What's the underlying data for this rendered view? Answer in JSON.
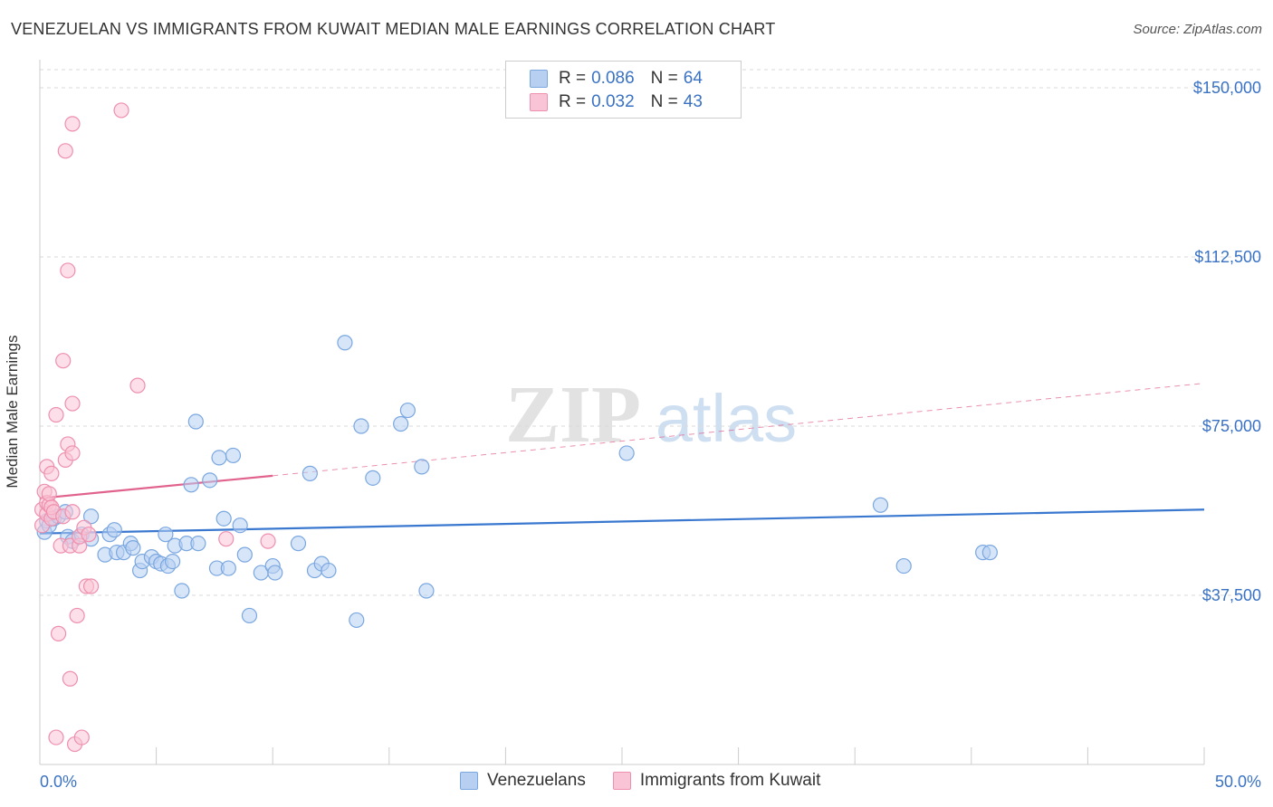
{
  "title": "VENEZUELAN VS IMMIGRANTS FROM KUWAIT MEDIAN MALE EARNINGS CORRELATION CHART",
  "source": "Source: ZipAtlas.com",
  "watermark": {
    "zip": "ZIP",
    "atlas": "atlas"
  },
  "legend": {
    "r_label": "R =",
    "n_label": "N =",
    "series": [
      {
        "name": "Venezuelans",
        "r": "0.086",
        "n": "64",
        "fill": "#b7d0f2",
        "stroke": "#7aa7e0"
      },
      {
        "name": "Immigrants from Kuwait",
        "r": "0.032",
        "n": "43",
        "fill": "#f9c5d6",
        "stroke": "#ee8fae"
      }
    ]
  },
  "chart_data": {
    "type": "scatter",
    "title": "VENEZUELAN VS IMMIGRANTS FROM KUWAIT MEDIAN MALE EARNINGS CORRELATION CHART",
    "xlabel": "",
    "ylabel": "Median Male Earnings",
    "xlim": [
      0,
      50
    ],
    "ylim": [
      0,
      155000
    ],
    "x_tick_labels": [
      "0.0%",
      "50.0%"
    ],
    "y_ticks": [
      37500,
      75000,
      112500,
      150000
    ],
    "y_tick_labels": [
      "$37,500",
      "$75,000",
      "$112,500",
      "$150,000"
    ],
    "grid": true,
    "legend_position": "top-center",
    "series": [
      {
        "name": "Venezuelans",
        "color": "#3a78d0",
        "trend": {
          "x": [
            0,
            50
          ],
          "y": [
            51200,
            56500
          ],
          "dashed_extension": false
        },
        "points": [
          [
            0.2,
            51500
          ],
          [
            0.3,
            54000
          ],
          [
            0.4,
            53000
          ],
          [
            0.6,
            54500
          ],
          [
            0.8,
            55000
          ],
          [
            1.1,
            56000
          ],
          [
            1.2,
            50500
          ],
          [
            1.4,
            49500
          ],
          [
            1.8,
            51000
          ],
          [
            2.2,
            50000
          ],
          [
            2.2,
            55000
          ],
          [
            2.8,
            46500
          ],
          [
            3.0,
            51000
          ],
          [
            3.2,
            52000
          ],
          [
            3.3,
            47000
          ],
          [
            3.6,
            47000
          ],
          [
            3.9,
            49000
          ],
          [
            4.0,
            48000
          ],
          [
            4.3,
            43000
          ],
          [
            4.4,
            45000
          ],
          [
            4.8,
            46000
          ],
          [
            5.0,
            45000
          ],
          [
            5.2,
            44500
          ],
          [
            5.4,
            51000
          ],
          [
            5.5,
            44000
          ],
          [
            5.7,
            45000
          ],
          [
            5.8,
            48500
          ],
          [
            6.1,
            38500
          ],
          [
            6.3,
            49000
          ],
          [
            6.5,
            62000
          ],
          [
            6.7,
            76000
          ],
          [
            6.8,
            49000
          ],
          [
            7.3,
            63000
          ],
          [
            7.6,
            43500
          ],
          [
            7.7,
            68000
          ],
          [
            7.9,
            54500
          ],
          [
            8.1,
            43500
          ],
          [
            8.3,
            68500
          ],
          [
            8.6,
            53000
          ],
          [
            8.8,
            46500
          ],
          [
            9.0,
            33000
          ],
          [
            9.5,
            42500
          ],
          [
            10.0,
            44000
          ],
          [
            10.1,
            42500
          ],
          [
            11.1,
            49000
          ],
          [
            11.6,
            64500
          ],
          [
            11.8,
            43000
          ],
          [
            12.1,
            44500
          ],
          [
            12.4,
            43000
          ],
          [
            13.1,
            93500
          ],
          [
            13.6,
            32000
          ],
          [
            13.8,
            75000
          ],
          [
            14.3,
            63500
          ],
          [
            15.5,
            75500
          ],
          [
            15.8,
            78500
          ],
          [
            16.4,
            66000
          ],
          [
            16.6,
            38500
          ],
          [
            25.2,
            69000
          ],
          [
            36.1,
            57500
          ],
          [
            37.1,
            44000
          ],
          [
            40.5,
            47000
          ],
          [
            40.8,
            47000
          ]
        ]
      },
      {
        "name": "Immigrants from Kuwait",
        "color": "#e0628d",
        "trend": {
          "x": [
            0,
            10
          ],
          "y": [
            59000,
            64000
          ],
          "dashed_extension": true,
          "dashed_end": [
            50,
            84500
          ]
        },
        "points": [
          [
            0.1,
            56500
          ],
          [
            0.1,
            53000
          ],
          [
            0.2,
            60500
          ],
          [
            0.3,
            58000
          ],
          [
            0.3,
            55500
          ],
          [
            0.3,
            66000
          ],
          [
            0.4,
            57500
          ],
          [
            0.4,
            60000
          ],
          [
            0.5,
            54500
          ],
          [
            0.5,
            57000
          ],
          [
            0.5,
            64500
          ],
          [
            0.6,
            56000
          ],
          [
            0.7,
            77500
          ],
          [
            0.7,
            6000
          ],
          [
            0.8,
            29000
          ],
          [
            0.9,
            48500
          ],
          [
            1.0,
            55000
          ],
          [
            1.0,
            89500
          ],
          [
            1.1,
            136000
          ],
          [
            1.1,
            67500
          ],
          [
            1.2,
            71000
          ],
          [
            1.2,
            109500
          ],
          [
            1.3,
            19000
          ],
          [
            1.3,
            48500
          ],
          [
            1.4,
            142000
          ],
          [
            1.4,
            80000
          ],
          [
            1.4,
            69000
          ],
          [
            1.4,
            56000
          ],
          [
            1.5,
            4500
          ],
          [
            1.6,
            33000
          ],
          [
            1.7,
            48500
          ],
          [
            1.7,
            50500
          ],
          [
            1.8,
            6000
          ],
          [
            1.9,
            52500
          ],
          [
            2.0,
            39500
          ],
          [
            2.1,
            51000
          ],
          [
            2.2,
            39500
          ],
          [
            3.5,
            145000
          ],
          [
            4.2,
            84000
          ],
          [
            8.0,
            50000
          ],
          [
            9.8,
            49500
          ]
        ]
      }
    ]
  }
}
